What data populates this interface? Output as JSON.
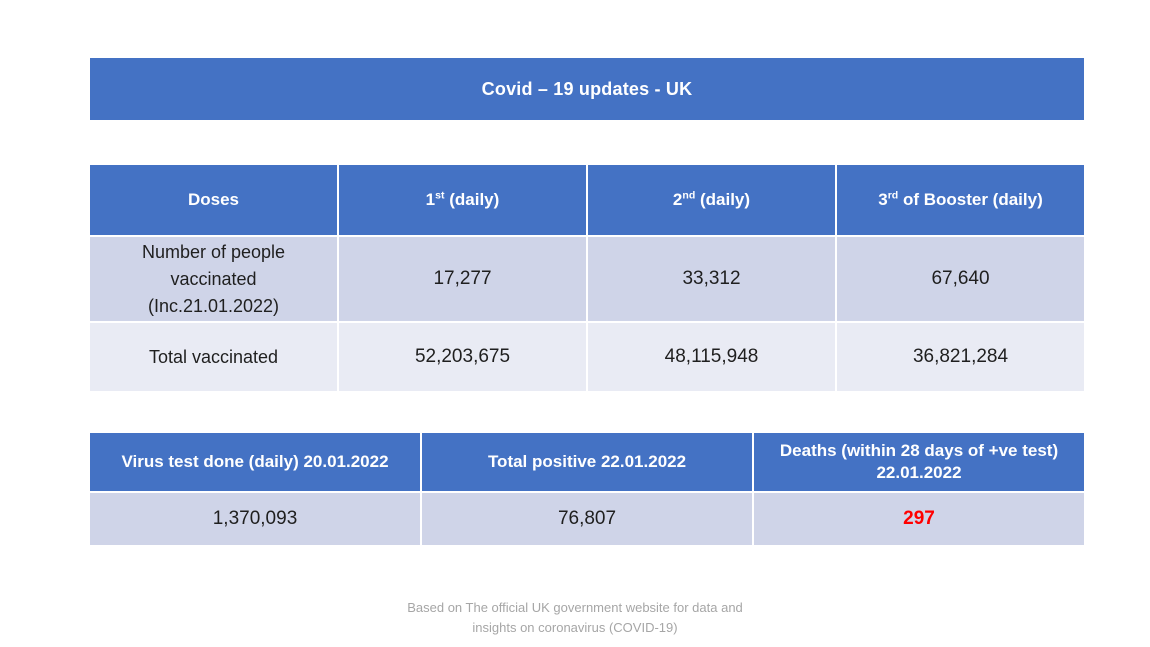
{
  "page": {
    "title": "Covid – 19 updates - UK",
    "footer_lines": [
      "Based on The official UK government website for data and",
      "insights on coronavirus (COVID-19)"
    ]
  },
  "colors": {
    "header_blue": "#4472C4",
    "row_dark": "#CFD4E8",
    "row_light": "#E9EBF4",
    "deaths_red": "#FF0000",
    "footer_gray": "#A6A6A6"
  },
  "vaccine_table": {
    "headers": [
      {
        "pre": "Doses",
        "sup": "",
        "post": ""
      },
      {
        "pre": "1",
        "sup": "st",
        "post": " (daily)"
      },
      {
        "pre": "2",
        "sup": "nd",
        "post": " (daily)"
      },
      {
        "pre": "3",
        "sup": "rd",
        "post": " of Booster (daily)"
      }
    ],
    "rows": [
      {
        "label_lines": [
          "Number of people",
          "vaccinated",
          "(Inc.21.01.2022)"
        ],
        "values": [
          "17,277",
          "33,312",
          "67,640"
        ]
      },
      {
        "label_lines": [
          "Total vaccinated"
        ],
        "values": [
          "52,203,675",
          "48,115,948",
          "36,821,284"
        ]
      }
    ]
  },
  "tests_table": {
    "headers": [
      {
        "lines": [
          "Virus test done (daily) 20.01.2022"
        ]
      },
      {
        "lines": [
          "Total positive 22.01.2022"
        ]
      },
      {
        "lines": [
          "Deaths (within 28 days of +ve test)",
          "22.01.2022"
        ]
      }
    ],
    "values": [
      "1,370,093",
      "76,807",
      "297"
    ]
  }
}
